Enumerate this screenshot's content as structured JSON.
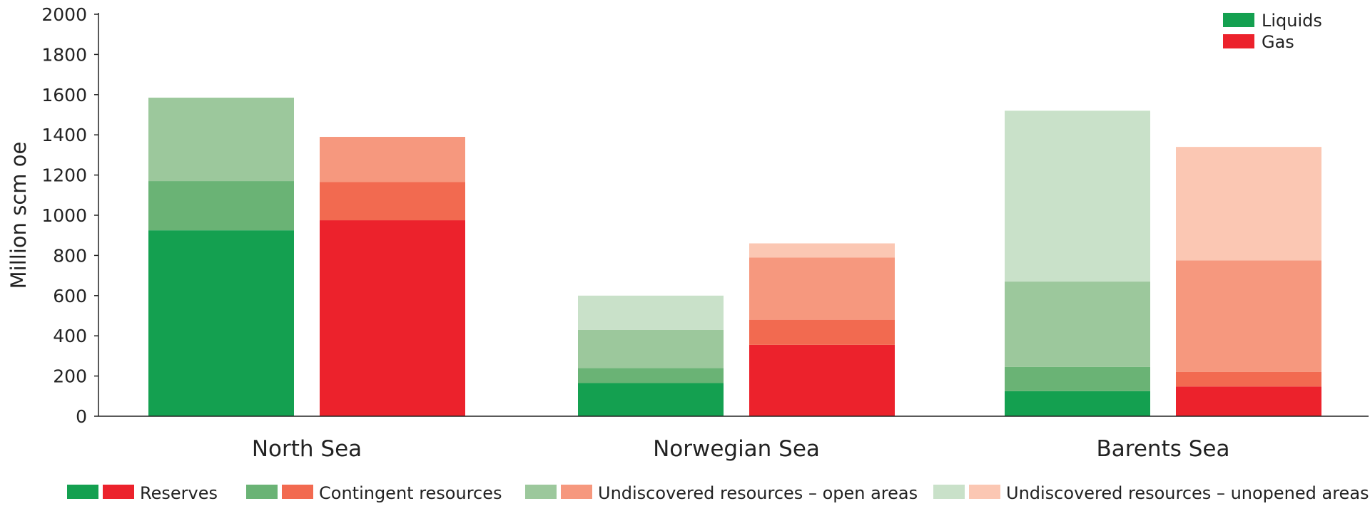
{
  "chart_data": {
    "type": "bar",
    "stacked": true,
    "grouped": true,
    "ylabel": "Million scm oe",
    "ylim": [
      0,
      2000
    ],
    "yticks": [
      0,
      200,
      400,
      600,
      800,
      1000,
      1200,
      1400,
      1600,
      1800,
      2000
    ],
    "categories": [
      "North Sea",
      "Norwegian Sea",
      "Barents Sea"
    ],
    "groups": [
      {
        "name": "Liquids",
        "color": "#14a050",
        "layers": {
          "Reserves": [
            925,
            165,
            125
          ],
          "Contingent resources": [
            245,
            75,
            120
          ],
          "Undiscovered resources – open areas": [
            415,
            190,
            425
          ],
          "Undiscovered resources – unopened areas": [
            0,
            170,
            850
          ]
        }
      },
      {
        "name": "Gas",
        "color": "#ec222c",
        "layers": {
          "Reserves": [
            975,
            355,
            148
          ],
          "Contingent resources": [
            190,
            125,
            72
          ],
          "Undiscovered resources – open areas": [
            225,
            310,
            555
          ],
          "Undiscovered resources – unopened areas": [
            0,
            70,
            565
          ]
        }
      }
    ],
    "layer_order": [
      "Reserves",
      "Contingent resources",
      "Undiscovered resources – open areas",
      "Undiscovered resources – unopened areas"
    ],
    "layer_colors": {
      "Liquids": [
        "#14a050",
        "#6ab375",
        "#9cc89c",
        "#c9e1c9"
      ],
      "Gas": [
        "#ec222c",
        "#f26a50",
        "#f6987e",
        "#fbc7b3"
      ]
    },
    "legend": {
      "placement": "top-right",
      "entries": [
        "Liquids",
        "Gas"
      ]
    },
    "bottom_legend": {
      "placement": "bottom",
      "entries": [
        "Reserves",
        "Contingent resources",
        "Undiscovered resources – open areas",
        "Undiscovered resources – unopened areas"
      ]
    },
    "grid": false
  }
}
